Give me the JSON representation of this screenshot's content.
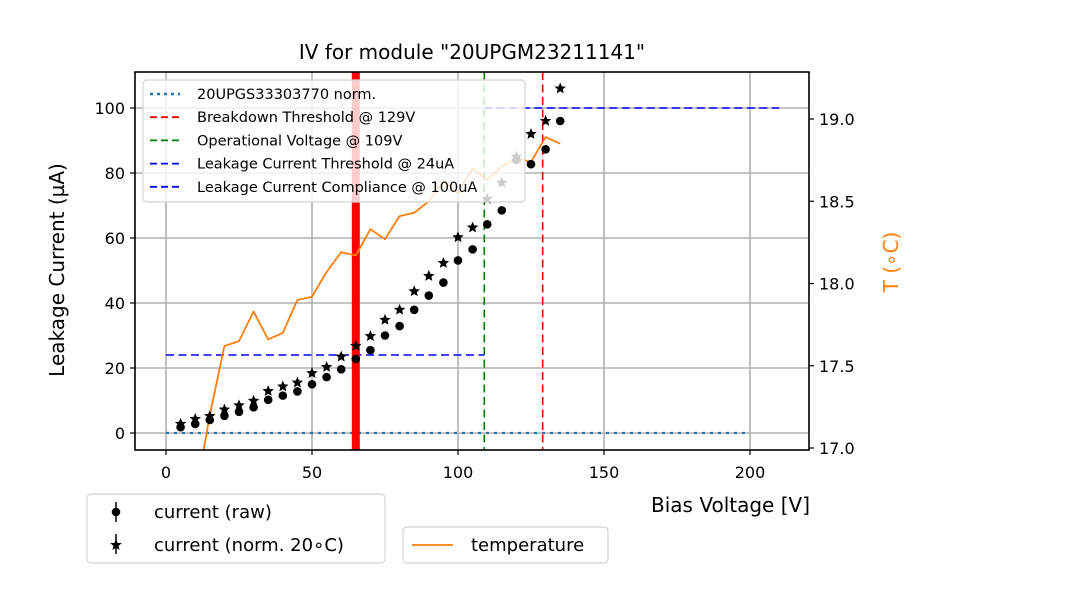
{
  "chart_data": {
    "type": "scatter",
    "title": "IV for module \"20UPGM23211141\"",
    "xlabel": "Bias Voltage [V]",
    "ylabel": "Leakage Current (µA)",
    "y2label": "T (∘C)",
    "xlim": [
      -10,
      220
    ],
    "ylim": [
      -5,
      112
    ],
    "y2lim": [
      17.0,
      19.1
    ],
    "grid": true,
    "xticks": [
      0,
      50,
      100,
      150,
      200
    ],
    "yticks": [
      0,
      20,
      40,
      60,
      80,
      100
    ],
    "y2ticks": [
      17.0,
      17.5,
      18.0,
      18.5,
      19.0
    ],
    "ytick_labels": [
      "0",
      "20",
      "40",
      "60",
      "80",
      "100"
    ],
    "xtick_labels": [
      "0",
      "50",
      "100",
      "150",
      "200"
    ],
    "y2tick_labels": [
      "17.0",
      "17.5",
      "18.0",
      "18.5",
      "19.0"
    ],
    "x": [
      5,
      10,
      15,
      20,
      25,
      30,
      35,
      40,
      45,
      50,
      55,
      60,
      65,
      70,
      75,
      80,
      85,
      90,
      95,
      100,
      105,
      110,
      115,
      120,
      125,
      130,
      135
    ],
    "series": [
      {
        "name": "current (raw)",
        "marker": "circle",
        "axis": "left",
        "color": "#000000",
        "values": [
          1.8,
          2.8,
          4.0,
          5.3,
          6.5,
          7.9,
          10.2,
          11.5,
          12.8,
          15.0,
          17.2,
          19.6,
          22.8,
          25.5,
          30.0,
          32.9,
          37.9,
          42.3,
          46.3,
          53.1,
          56.5,
          64.2,
          68.5,
          84.0,
          82.7,
          87.3,
          96.0
        ]
      },
      {
        "name": "current (norm. 20∘C)",
        "marker": "star",
        "axis": "left",
        "color": "#000000",
        "values": [
          2.8,
          4.3,
          5.2,
          7.2,
          8.5,
          9.9,
          12.9,
          14.3,
          15.5,
          18.4,
          20.3,
          23.5,
          26.8,
          29.8,
          34.8,
          37.9,
          43.6,
          48.3,
          52.3,
          60.2,
          63.2,
          72.0,
          77.0,
          85.0,
          92.0,
          96.0,
          106.0
        ]
      },
      {
        "name": "temperature",
        "marker": "line",
        "axis": "right",
        "color": "#ff7f0e",
        "values": [
          16.7,
          17.2,
          17.62,
          17.65,
          17.83,
          17.66,
          17.7,
          17.9,
          17.92,
          18.07,
          18.19,
          18.17,
          18.33,
          18.27,
          18.41,
          18.43,
          18.5,
          18.62,
          18.55,
          18.7,
          18.63,
          18.71,
          18.76,
          18.74,
          18.89,
          18.85
        ],
        "x": [
          10,
          15,
          20,
          25,
          30,
          35,
          40,
          45,
          50,
          55,
          60,
          65,
          70,
          75,
          80,
          85,
          90,
          95,
          100,
          105,
          110,
          115,
          120,
          125,
          130,
          135
        ]
      }
    ],
    "reference_lines": [
      {
        "name": "20UPGS33303770 norm.",
        "orientation": "horizontal",
        "value": 0,
        "from": 0,
        "to": 200,
        "style": "dotted",
        "color": "#1f77b4"
      },
      {
        "name": "Breakdown Threshold @ 129V",
        "orientation": "vertical",
        "value": 129,
        "style": "dashed",
        "color": "#ff0000"
      },
      {
        "name": "Operational Voltage @ 109V",
        "orientation": "vertical",
        "value": 109,
        "style": "dashed",
        "color": "#008000"
      },
      {
        "name": "Leakage Current Threshold @ 24uA",
        "orientation": "horizontal",
        "value": 24,
        "from": 0,
        "to": 109,
        "style": "dashed",
        "color": "#0000ff"
      },
      {
        "name": "Leakage Current Compliance @ 100uA",
        "orientation": "horizontal",
        "value": 100,
        "from": 109,
        "to": 210,
        "style": "dashed",
        "color": "#0000ff"
      }
    ],
    "annotations": [
      {
        "name": "vertical-marker",
        "orientation": "vertical",
        "value": 65,
        "style": "solid-thick",
        "color": "#ff0000"
      }
    ],
    "legends": [
      {
        "placement": "top-left-inside",
        "entries": [
          "20UPGS33303770 norm.",
          "Breakdown Threshold @ 129V",
          "Operational Voltage @ 109V",
          "Leakage Current Threshold @ 24uA",
          "Leakage Current Compliance @ 100uA"
        ]
      },
      {
        "placement": "bottom-left-outside",
        "entries": [
          "current (raw)",
          "current (norm. 20∘C)"
        ]
      },
      {
        "placement": "bottom-center-outside",
        "entries": [
          "temperature"
        ]
      }
    ]
  }
}
